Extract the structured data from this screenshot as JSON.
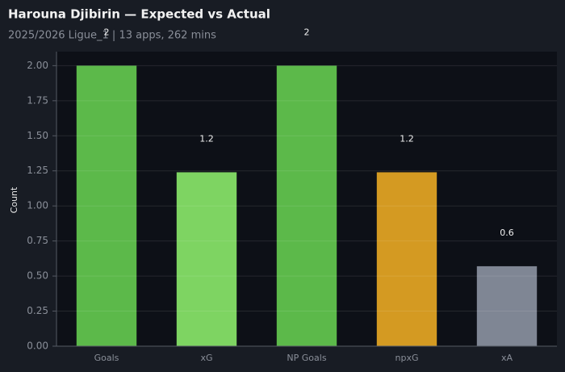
{
  "chart_data": {
    "type": "bar",
    "title": "Harouna Djibirin — Expected vs Actual",
    "subtitle": "2025/2026 Ligue_1 | 13 apps, 262 mins",
    "y_label": "Count",
    "categories": [
      "Goals",
      "xG",
      "NP Goals",
      "npxG",
      "xA"
    ],
    "values": [
      2,
      1.24,
      2,
      1.24,
      0.57
    ],
    "value_labels": [
      "2",
      "1.2",
      "2",
      "1.2",
      "0.6"
    ],
    "colors": [
      "#5cb94a",
      "#7ed462",
      "#5cb94a",
      "#d49a22",
      "#7f8694"
    ],
    "ylim": [
      0,
      2.1
    ],
    "yticks": [
      {
        "value": 0,
        "label": "0.00"
      },
      {
        "value": 0.25,
        "label": "0.25"
      },
      {
        "value": 0.5,
        "label": "0.50"
      },
      {
        "value": 0.75,
        "label": "0.75"
      },
      {
        "value": 1,
        "label": "1.00"
      },
      {
        "value": 1.25,
        "label": "1.25"
      },
      {
        "value": 1.5,
        "label": "1.50"
      },
      {
        "value": 1.75,
        "label": "1.75"
      },
      {
        "value": 2,
        "label": "2.00"
      }
    ],
    "grid": true
  }
}
